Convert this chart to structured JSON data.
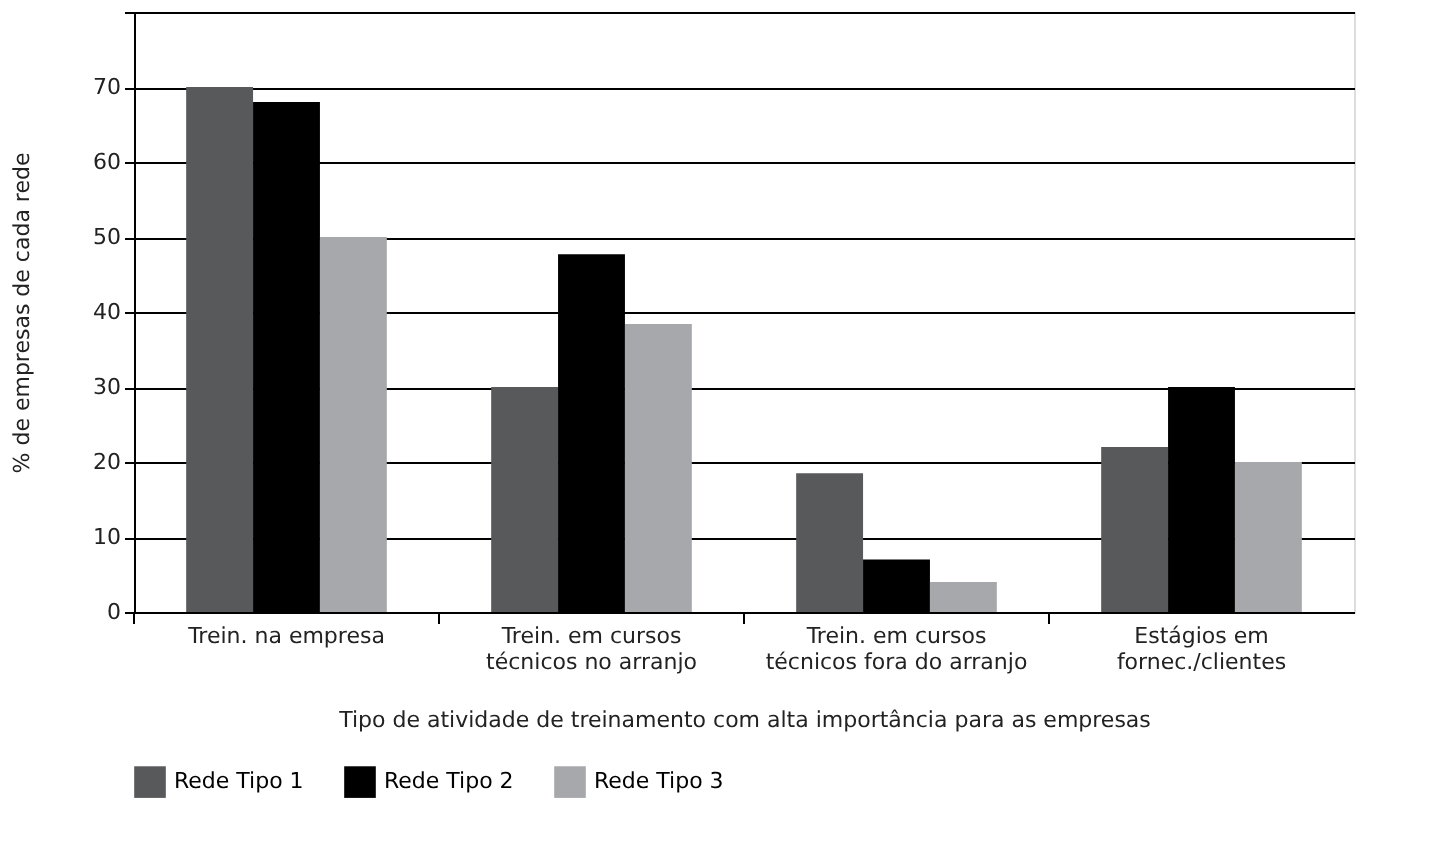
{
  "chart_data": {
    "type": "bar",
    "xlabel": "Tipo de atividade de treinamento com alta importância para as empresas",
    "ylabel": "% de empresas de cada rede",
    "categories": [
      "Trein. na empresa",
      "Trein. em cursos\ntécnicos no arranjo",
      "Trein. em cursos\ntécnicos fora do arranjo",
      "Estágios em\nfornec./clientes"
    ],
    "series": [
      {
        "name": "Rede Tipo 1",
        "color": "#58595b",
        "values": [
          70,
          30,
          18.5,
          22
        ]
      },
      {
        "name": "Rede Tipo 2",
        "color": "#000000",
        "values": [
          68,
          47.7,
          7,
          30
        ]
      },
      {
        "name": "Rede Tipo 3",
        "color": "#a7a8ab",
        "values": [
          50,
          38.4,
          4,
          20
        ]
      }
    ],
    "ylim": [
      0,
      80
    ],
    "yticks": [
      0,
      10,
      20,
      30,
      40,
      50,
      60,
      70,
      {
        "value": 80,
        "label": null
      }
    ],
    "grid": "y",
    "legend": "bottom"
  }
}
